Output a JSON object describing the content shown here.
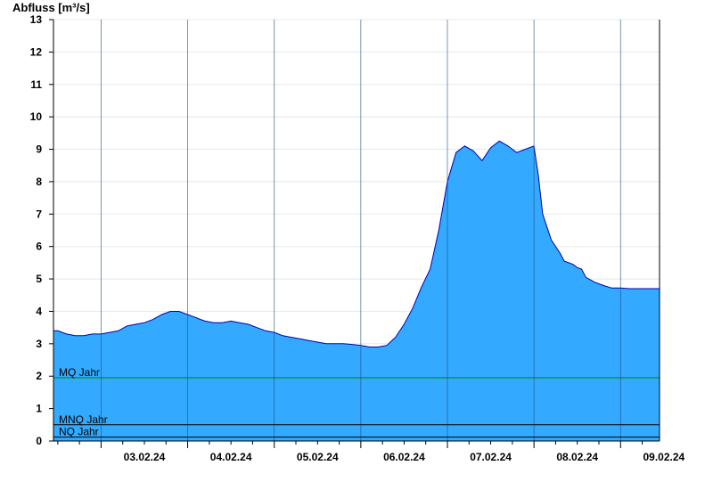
{
  "chart_data": {
    "type": "area",
    "ylabel": "Abfluss [m³/s]",
    "ylim": [
      0,
      13
    ],
    "yticks": [
      0,
      1,
      2,
      3,
      4,
      5,
      6,
      7,
      8,
      9,
      10,
      11,
      12,
      13
    ],
    "xlim_days": [
      2.45,
      9.45
    ],
    "day_dividers": [
      3,
      4,
      5,
      6,
      7,
      8,
      9
    ],
    "xticks": [
      {
        "label": "03.02.24",
        "day": 3.5
      },
      {
        "label": "04.02.24",
        "day": 4.5
      },
      {
        "label": "05.02.24",
        "day": 5.5
      },
      {
        "label": "06.02.24",
        "day": 6.5
      },
      {
        "label": "07.02.24",
        "day": 7.5
      },
      {
        "label": "08.02.24",
        "day": 8.5
      },
      {
        "label": "09.02.24",
        "day": 9.5
      }
    ],
    "fill_color": "#33aaff",
    "line_color": "#0000aa",
    "grid": true,
    "series": [
      {
        "x": [
          2.45,
          2.5,
          2.6,
          2.7,
          2.8,
          2.9,
          3.0,
          3.1,
          3.2,
          3.3,
          3.4,
          3.5,
          3.6,
          3.7,
          3.8,
          3.9,
          4.0,
          4.1,
          4.15,
          4.2,
          4.3,
          4.4,
          4.5,
          4.6,
          4.7,
          4.8,
          4.9,
          5.0,
          5.1,
          5.2,
          5.3,
          5.4,
          5.5,
          5.6,
          5.7,
          5.8,
          5.9,
          6.0,
          6.1,
          6.2,
          6.3,
          6.4,
          6.5,
          6.6,
          6.7,
          6.8,
          6.9,
          7.0,
          7.1,
          7.2,
          7.3,
          7.4,
          7.5,
          7.6,
          7.7,
          7.8,
          7.9,
          8.0,
          8.05,
          8.1,
          8.2,
          8.3,
          8.35,
          8.4,
          8.45,
          8.5,
          8.55,
          8.6,
          8.7,
          8.8,
          8.9,
          9.0,
          9.1,
          9.2,
          9.3,
          9.4,
          9.45
        ],
        "values": [
          3.4,
          3.4,
          3.3,
          3.25,
          3.25,
          3.3,
          3.3,
          3.35,
          3.4,
          3.55,
          3.6,
          3.65,
          3.75,
          3.9,
          4.0,
          4.0,
          3.9,
          3.8,
          3.75,
          3.7,
          3.65,
          3.65,
          3.7,
          3.65,
          3.6,
          3.5,
          3.4,
          3.35,
          3.25,
          3.2,
          3.15,
          3.1,
          3.05,
          3.0,
          3.0,
          3.0,
          2.98,
          2.95,
          2.9,
          2.9,
          2.95,
          3.2,
          3.6,
          4.1,
          4.75,
          5.3,
          6.5,
          8.0,
          8.9,
          9.1,
          8.95,
          8.65,
          9.05,
          9.25,
          9.1,
          8.9,
          9.0,
          9.1,
          8.2,
          7.0,
          6.2,
          5.8,
          5.55,
          5.5,
          5.45,
          5.35,
          5.3,
          5.05,
          4.9,
          4.8,
          4.72,
          4.72,
          4.7,
          4.7,
          4.7,
          4.7,
          4.7
        ]
      }
    ],
    "reference_lines": [
      {
        "label": "MQ Jahr",
        "value": 1.95,
        "color": "#008000"
      },
      {
        "label": "MNQ Jahr",
        "value": 0.5,
        "color": "#000000"
      },
      {
        "label": "NQ Jahr",
        "value": 0.12,
        "color": "#000000"
      }
    ]
  }
}
